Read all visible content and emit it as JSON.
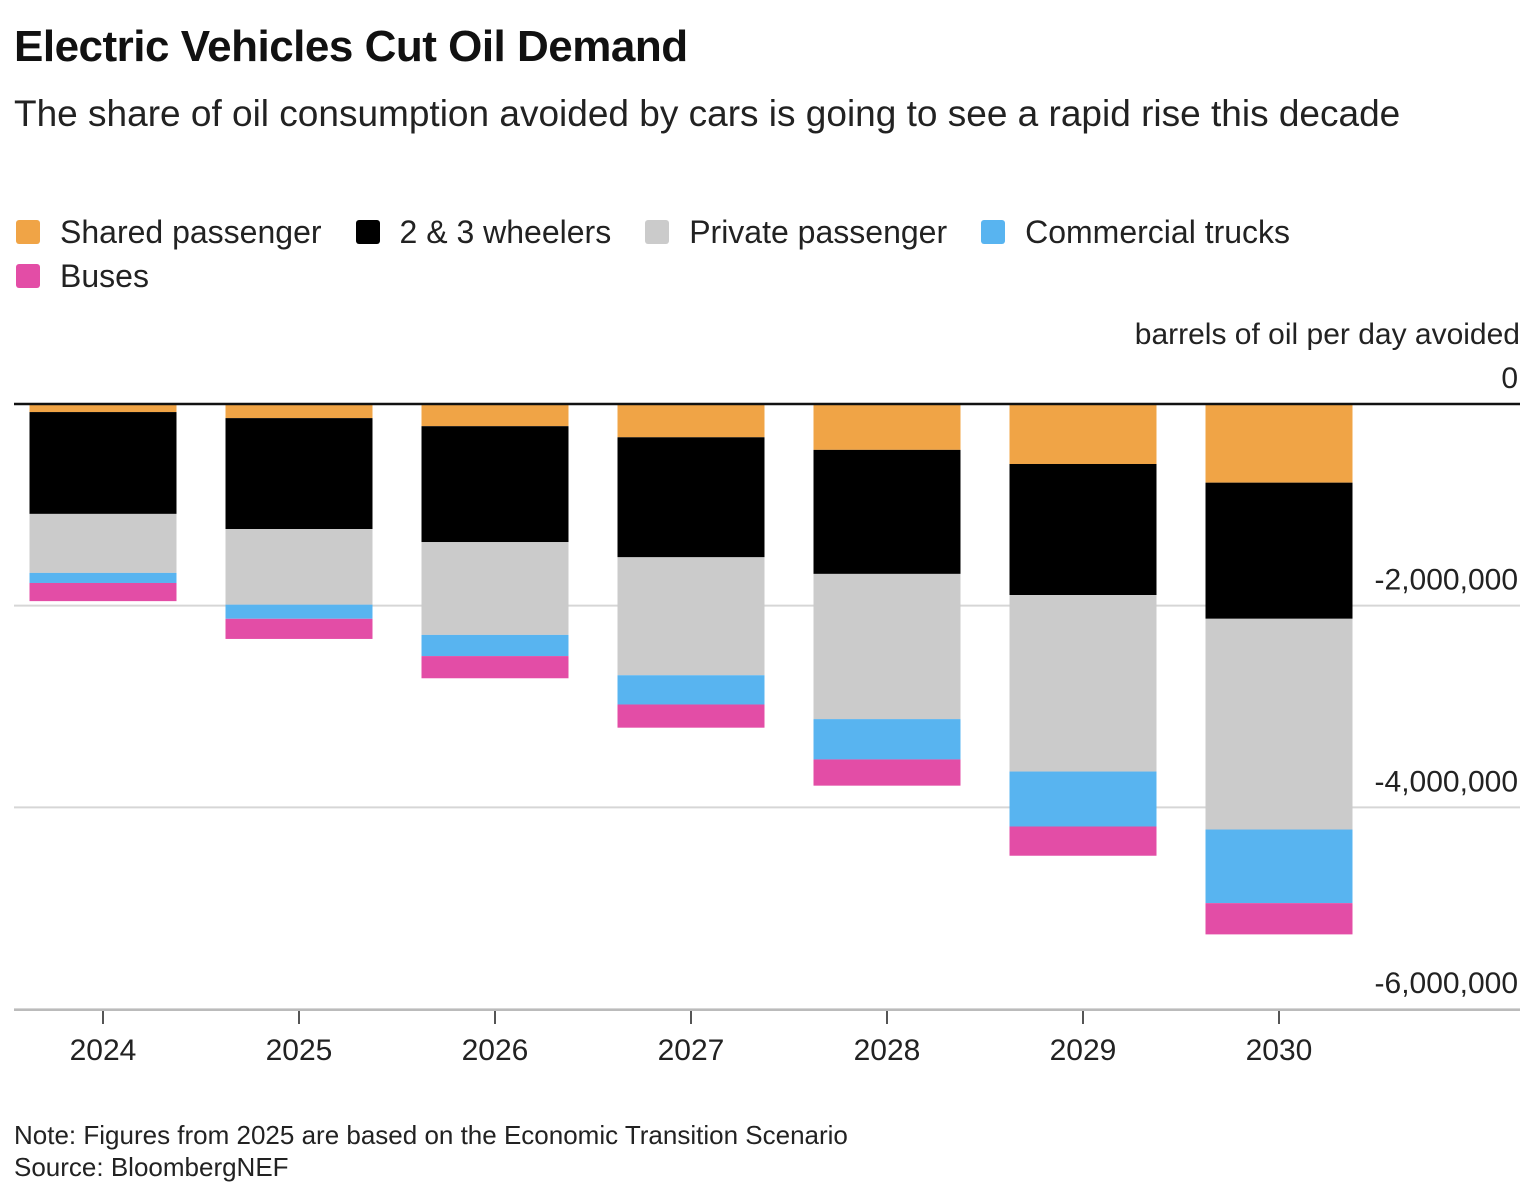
{
  "title": "Electric Vehicles Cut Oil Demand",
  "subtitle": "The share of oil consumption avoided by cars is going to see a rapid rise this decade",
  "note": "Note: Figures from 2025 are based on the Economic Transition Scenario",
  "source": "Source: BloombergNEF",
  "chart_data": {
    "type": "bar",
    "stacked": true,
    "ylabel": "barrels of oil per day avoided",
    "categories": [
      "2024",
      "2025",
      "2026",
      "2027",
      "2028",
      "2029",
      "2030"
    ],
    "ylim": [
      -6000000,
      0
    ],
    "yticks": [
      0,
      -2000000,
      -4000000,
      -6000000
    ],
    "ytick_labels": [
      "0",
      "-2,000,000",
      "-4,000,000",
      "-6,000,000"
    ],
    "grid": true,
    "legend_position": "top",
    "series": [
      {
        "name": "Shared passenger",
        "color": "#f0a446",
        "values": [
          -80000,
          -140000,
          -220000,
          -330000,
          -455000,
          -595000,
          -780000
        ]
      },
      {
        "name": "2 & 3 wheelers",
        "color": "#000000",
        "values": [
          -1010000,
          -1100000,
          -1150000,
          -1190000,
          -1230000,
          -1300000,
          -1350000
        ]
      },
      {
        "name": "Private passenger",
        "color": "#cbcbcb",
        "values": [
          -585000,
          -750000,
          -920000,
          -1170000,
          -1440000,
          -1750000,
          -2090000
        ]
      },
      {
        "name": "Commercial trucks",
        "color": "#58b4f0",
        "values": [
          -100000,
          -140000,
          -210000,
          -290000,
          -400000,
          -545000,
          -730000
        ]
      },
      {
        "name": "Buses",
        "color": "#e34da6",
        "values": [
          -180000,
          -200000,
          -220000,
          -230000,
          -260000,
          -290000,
          -310000
        ]
      }
    ]
  }
}
